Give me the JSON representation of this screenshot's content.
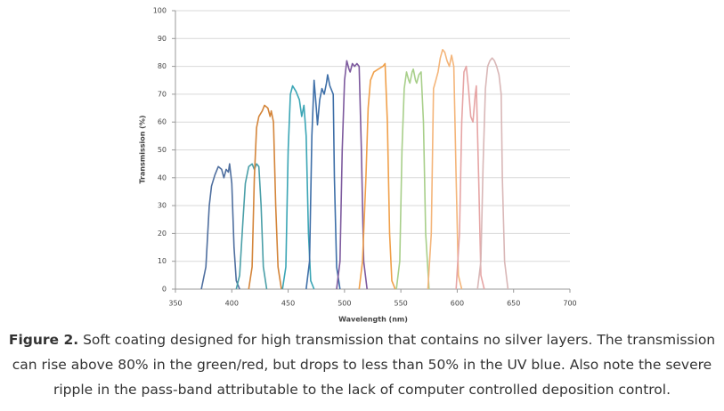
{
  "chart_data": {
    "type": "line",
    "x_label": "Wavelength (nm)",
    "y_label": "Transmission (%)",
    "xlim": [
      350,
      700
    ],
    "xticks": [
      350,
      400,
      450,
      500,
      550,
      600,
      650,
      700
    ],
    "ylim": [
      0,
      100
    ],
    "yticks": [
      0,
      10,
      20,
      30,
      40,
      50,
      60,
      70,
      80,
      90,
      100
    ],
    "grid": true,
    "series": [
      {
        "color": "#4f6f9f",
        "x": [
          373,
          377,
          380,
          382,
          385,
          388,
          391,
          393,
          395,
          397,
          398,
          400,
          402,
          404,
          407
        ],
        "values": [
          0,
          8,
          30,
          37,
          41,
          44,
          43,
          40,
          43,
          42,
          45,
          38,
          15,
          3,
          0
        ]
      },
      {
        "color": "#4a9fa8",
        "x": [
          404,
          407,
          410,
          412,
          415,
          418,
          420,
          422,
          424,
          426,
          428,
          431
        ],
        "values": [
          0,
          5,
          25,
          38,
          44,
          45,
          43,
          45,
          44,
          30,
          8,
          0
        ]
      },
      {
        "color": "#d4853a",
        "x": [
          415,
          418,
          420,
          422,
          424,
          427,
          429,
          432,
          434,
          435,
          437,
          439,
          441,
          444
        ],
        "values": [
          0,
          8,
          40,
          58,
          62,
          64,
          66,
          65,
          62,
          64,
          60,
          30,
          8,
          0
        ]
      },
      {
        "color": "#3aa5b5",
        "x": [
          445,
          448,
          450,
          452,
          454,
          457,
          460,
          462,
          464,
          466,
          468,
          470,
          473
        ],
        "values": [
          0,
          8,
          50,
          70,
          73,
          71,
          68,
          62,
          66,
          55,
          20,
          3,
          0
        ]
      },
      {
        "color": "#3e6fa8",
        "x": [
          466,
          469,
          471,
          473,
          475,
          476,
          478,
          480,
          482,
          484,
          485,
          487,
          490,
          491,
          493,
          496
        ],
        "values": [
          0,
          10,
          55,
          75,
          65,
          59,
          68,
          72,
          70,
          74,
          77,
          73,
          70,
          40,
          8,
          0
        ]
      },
      {
        "color": "#7d5a9e",
        "x": [
          493,
          496,
          498,
          500,
          502,
          504,
          505,
          507,
          509,
          511,
          513,
          515,
          517,
          520
        ],
        "values": [
          0,
          10,
          50,
          75,
          82,
          79,
          78,
          81,
          80,
          81,
          80,
          50,
          10,
          0
        ]
      },
      {
        "color": "#f0a04a",
        "x": [
          513,
          516,
          519,
          521,
          523,
          526,
          530,
          534,
          536,
          538,
          540,
          542,
          545
        ],
        "values": [
          0,
          10,
          40,
          65,
          75,
          78,
          79,
          80,
          81,
          60,
          20,
          3,
          0
        ]
      },
      {
        "color": "#a8cf8a",
        "x": [
          546,
          549,
          551,
          553,
          555,
          557,
          558,
          560,
          561,
          563,
          564,
          566,
          568,
          570,
          572,
          575
        ],
        "values": [
          0,
          10,
          50,
          72,
          78,
          75,
          74,
          78,
          79,
          75,
          74,
          77,
          78,
          60,
          20,
          0
        ]
      },
      {
        "color": "#f4b57a",
        "x": [
          574,
          577,
          579,
          581,
          583,
          585,
          587,
          589,
          591,
          593,
          595,
          597,
          599,
          601,
          604
        ],
        "values": [
          0,
          20,
          72,
          75,
          78,
          83,
          86,
          85,
          82,
          80,
          84,
          80,
          40,
          5,
          0
        ]
      },
      {
        "color": "#e6a5a5",
        "x": [
          599,
          602,
          604,
          606,
          608,
          610,
          612,
          614,
          616,
          617,
          619,
          621,
          624
        ],
        "values": [
          0,
          20,
          60,
          78,
          80,
          72,
          62,
          60,
          70,
          73,
          40,
          5,
          0
        ]
      },
      {
        "color": "#d9b7b7",
        "x": [
          618,
          621,
          623,
          625,
          627,
          629,
          631,
          633,
          635,
          637,
          639,
          640,
          642,
          645
        ],
        "values": [
          0,
          10,
          45,
          72,
          80,
          82,
          83,
          82,
          80,
          77,
          70,
          40,
          10,
          0
        ]
      }
    ]
  },
  "caption": {
    "label": "Figure 2.",
    "text": "Soft coating designed for high transmission that contains no silver layers. The transmission can rise above 80% in the green/red, but drops to less than 50% in the UV blue. Also note the severe ripple in the pass-band attributable to the lack of computer controlled deposition control."
  }
}
